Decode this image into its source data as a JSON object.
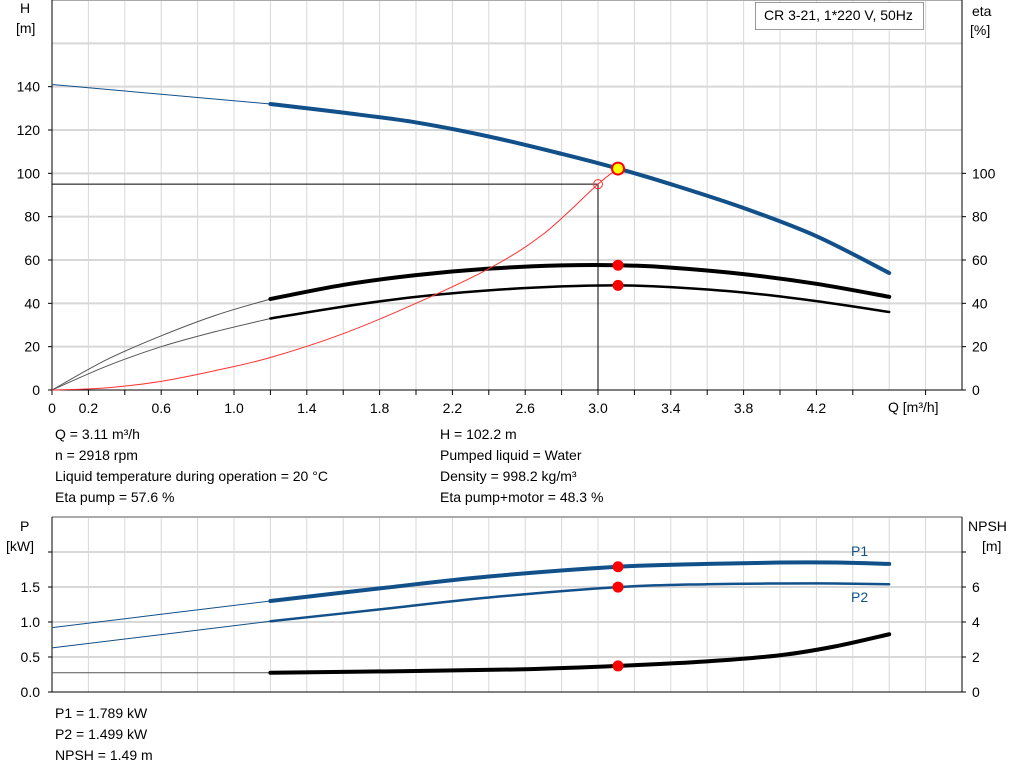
{
  "chart_data": [
    {
      "type": "line",
      "title_box": "CR 3-21, 1*220 V, 50Hz",
      "xlabel": "Q [m³/h]",
      "ylabel_left": [
        "H",
        "[m]"
      ],
      "ylabel_right": [
        "eta",
        "[%]"
      ],
      "xlim": [
        0,
        5.0
      ],
      "ylim": [
        0,
        180
      ],
      "grid": true,
      "x_ticks": [
        "0",
        "0.2",
        "0.6",
        "1.0",
        "1.4",
        "1.8",
        "2.2",
        "2.6",
        "3.0",
        "3.4",
        "3.8",
        "4.2"
      ],
      "x_tick_values": [
        0,
        0.2,
        0.6,
        1.0,
        1.4,
        1.8,
        2.2,
        2.6,
        3.0,
        3.4,
        3.8,
        4.2
      ],
      "y_ticks": [
        0,
        20,
        40,
        60,
        80,
        100,
        120,
        140
      ],
      "y_right_ticks": [
        0,
        20,
        40,
        60,
        80,
        100
      ],
      "series": [
        {
          "key": "H",
          "color": "#12508a",
          "solid_from": 1.2,
          "points": [
            [
              0,
              141
            ],
            [
              0.6,
              136.5
            ],
            [
              1.2,
              132
            ],
            [
              1.6,
              128
            ],
            [
              2.0,
              123.5
            ],
            [
              2.4,
              117
            ],
            [
              2.8,
              109
            ],
            [
              3.11,
              102.2
            ],
            [
              3.4,
              95
            ],
            [
              3.8,
              84
            ],
            [
              4.2,
              71
            ],
            [
              4.6,
              54
            ]
          ]
        },
        {
          "key": "eta_pump",
          "color": "#000",
          "solid_from": 1.2,
          "points": [
            [
              0,
              0
            ],
            [
              0.3,
              14
            ],
            [
              0.6,
              25
            ],
            [
              0.9,
              34.5
            ],
            [
              1.2,
              42
            ],
            [
              1.6,
              48.5
            ],
            [
              2.0,
              53
            ],
            [
              2.4,
              56
            ],
            [
              2.8,
              57.5
            ],
            [
              3.11,
              57.6
            ],
            [
              3.4,
              56.5
            ],
            [
              3.8,
              53.5
            ],
            [
              4.2,
              49
            ],
            [
              4.6,
              43
            ]
          ]
        },
        {
          "key": "eta_pump_motor",
          "color": "#000",
          "solid_from": 1.2,
          "points": [
            [
              0,
              0
            ],
            [
              0.3,
              11
            ],
            [
              0.6,
              20
            ],
            [
              0.9,
              27
            ],
            [
              1.2,
              33
            ],
            [
              1.6,
              38.5
            ],
            [
              2.0,
              43
            ],
            [
              2.4,
              46
            ],
            [
              2.8,
              47.8
            ],
            [
              3.11,
              48.3
            ],
            [
              3.4,
              47.5
            ],
            [
              3.8,
              45
            ],
            [
              4.2,
              41
            ],
            [
              4.6,
              36
            ]
          ]
        },
        {
          "key": "system",
          "color": "#ff3030",
          "points": [
            [
              0,
              0
            ],
            [
              0.3,
              1
            ],
            [
              0.6,
              4
            ],
            [
              0.9,
              9
            ],
            [
              1.2,
              15
            ],
            [
              1.6,
              26
            ],
            [
              2.0,
              40
            ],
            [
              2.4,
              56
            ],
            [
              2.7,
              72
            ],
            [
              3.0,
              95
            ],
            [
              3.11,
              102.2
            ]
          ]
        }
      ],
      "operating_point": {
        "Q": 3.11,
        "H": 102.2,
        "eta_pump": 57.6,
        "eta_pump_motor": 48.3
      },
      "reference_point": {
        "Q": 3.0,
        "H": 95
      }
    },
    {
      "type": "line",
      "ylabel_left": [
        "P",
        "[kW]"
      ],
      "ylabel_right": [
        "NPSH",
        "[m]"
      ],
      "xlim": [
        0,
        5.0
      ],
      "ylim": [
        0,
        2.5
      ],
      "y_right_lim": [
        0,
        10
      ],
      "grid": true,
      "y_ticks": [
        "0.0",
        "0.5",
        "1.0",
        "1.5"
      ],
      "y_tick_values": [
        0,
        0.5,
        1.0,
        1.5
      ],
      "y_right_ticks": [
        0,
        2,
        4,
        6
      ],
      "series": [
        {
          "name": "P1",
          "color": "#12508a",
          "solid_from": 1.2,
          "points": [
            [
              0,
              0.92
            ],
            [
              1.2,
              1.3
            ],
            [
              1.8,
              1.48
            ],
            [
              2.4,
              1.65
            ],
            [
              3.11,
              1.789
            ],
            [
              3.6,
              1.83
            ],
            [
              4.0,
              1.85
            ],
            [
              4.3,
              1.85
            ],
            [
              4.6,
              1.83
            ]
          ]
        },
        {
          "name": "P2",
          "color": "#12508a",
          "solid_from": 1.2,
          "points": [
            [
              0,
              0.63
            ],
            [
              1.2,
              1.01
            ],
            [
              1.8,
              1.18
            ],
            [
              2.4,
              1.35
            ],
            [
              3.11,
              1.499
            ],
            [
              3.6,
              1.54
            ],
            [
              4.0,
              1.55
            ],
            [
              4.3,
              1.55
            ],
            [
              4.6,
              1.54
            ]
          ]
        },
        {
          "key": "NPSH",
          "axis": "right",
          "color": "#000",
          "solid_from": 1.2,
          "points": [
            [
              0,
              1.1
            ],
            [
              0.4,
              1.1
            ],
            [
              1.2,
              1.1
            ],
            [
              2.0,
              1.2
            ],
            [
              2.6,
              1.3
            ],
            [
              3.11,
              1.49
            ],
            [
              3.6,
              1.75
            ],
            [
              4.0,
              2.1
            ],
            [
              4.3,
              2.6
            ],
            [
              4.6,
              3.3
            ]
          ]
        }
      ],
      "operating_point": {
        "Q": 3.11,
        "P1": 1.789,
        "P2": 1.499,
        "NPSH": 1.49
      }
    }
  ],
  "info_top_left": [
    "Q = 3.11 m³/h",
    "n = 2918 rpm",
    "Liquid temperature during operation = 20 °C",
    "Eta pump = 57.6 %"
  ],
  "info_top_right": [
    "H = 102.2 m",
    "Pumped liquid = Water",
    "Density = 998.2 kg/m³",
    "Eta pump+motor = 48.3 %"
  ],
  "info_bottom": [
    "P1 = 1.789 kW",
    "P2 = 1.499 kW",
    "NPSH = 1.49 m"
  ]
}
